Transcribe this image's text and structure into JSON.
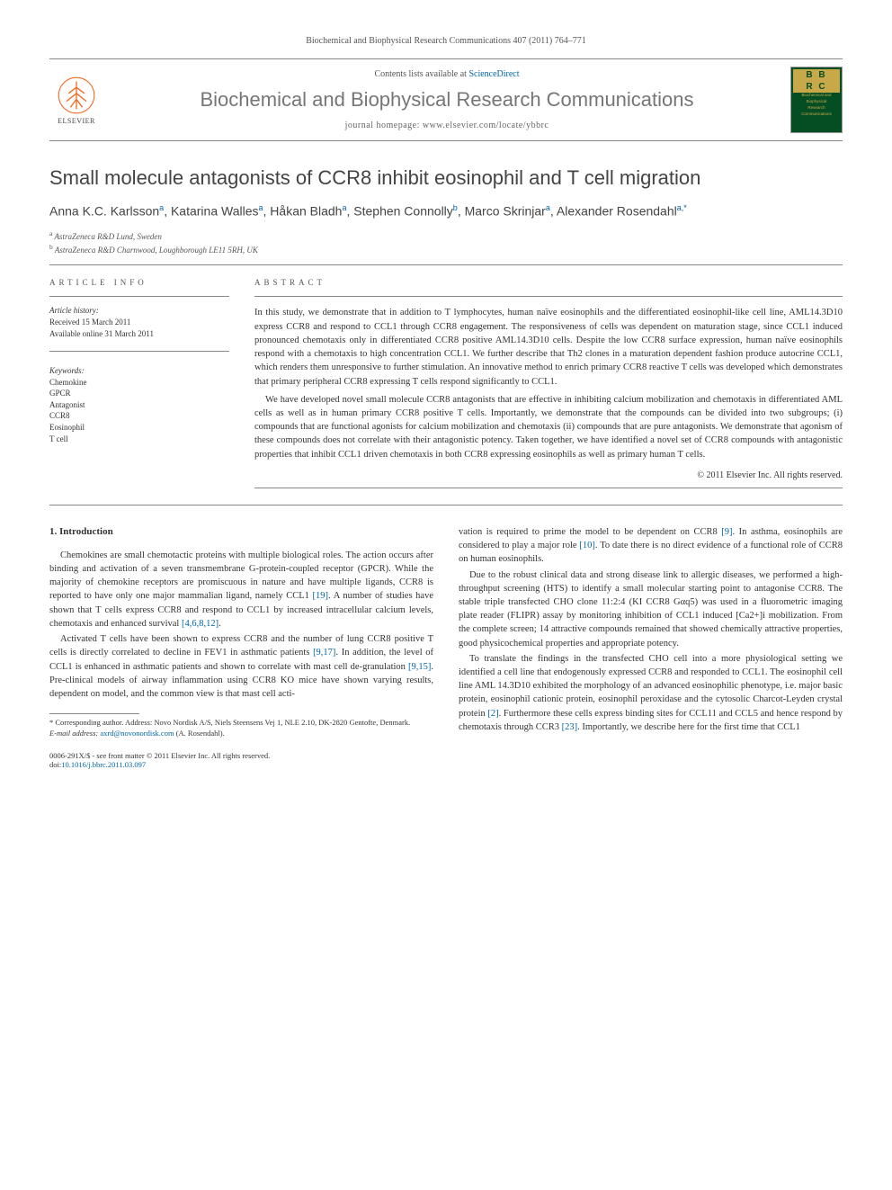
{
  "header": {
    "journal_ref": "Biochemical and Biophysical Research Communications 407 (2011) 764–771",
    "contents_prefix": "Contents lists available at ",
    "contents_link": "ScienceDirect",
    "journal_name": "Biochemical and Biophysical Research Communications",
    "homepage_prefix": "journal homepage: ",
    "homepage_url": "www.elsevier.com/locate/ybbrc",
    "publisher": "ELSEVIER",
    "cover": {
      "abbrev_top": "B B",
      "abbrev_bottom": "R C",
      "subtitle1": "Biochemical and",
      "subtitle2": "Biophysical",
      "subtitle3": "Research",
      "subtitle4": "Communications"
    }
  },
  "article": {
    "title": "Small molecule antagonists of CCR8 inhibit eosinophil and T cell migration",
    "authors_html": "Anna K.C. Karlsson<sup>a</sup>, Katarina Walles<sup>a</sup>, Håkan Bladh<sup>a</sup>, Stephen Connolly<sup>b</sup>, Marco Skrinjar<sup>a</sup>, Alexander Rosendahl<sup>a,*</sup>",
    "affiliations": [
      {
        "label": "a",
        "text": "AstraZeneca R&D Lund, Sweden"
      },
      {
        "label": "b",
        "text": "AstraZeneca R&D Charnwood, Loughborough LE11 5RH, UK"
      }
    ]
  },
  "meta": {
    "article_info_heading": "ARTICLE INFO",
    "abstract_heading": "ABSTRACT",
    "history_heading": "Article history:",
    "received": "Received 15 March 2011",
    "available": "Available online 31 March 2011",
    "keywords_heading": "Keywords:",
    "keywords": [
      "Chemokine",
      "GPCR",
      "Antagonist",
      "CCR8",
      "Eosinophil",
      "T cell"
    ]
  },
  "abstract": {
    "p1": "In this study, we demonstrate that in addition to T lymphocytes, human naïve eosinophils and the differentiated eosinophil-like cell line, AML14.3D10 express CCR8 and respond to CCL1 through CCR8 engagement. The responsiveness of cells was dependent on maturation stage, since CCL1 induced pronounced chemotaxis only in differentiated CCR8 positive AML14.3D10 cells. Despite the low CCR8 surface expression, human naïve eosinophils respond with a chemotaxis to high concentration CCL1. We further describe that Th2 clones in a maturation dependent fashion produce autocrine CCL1, which renders them unresponsive to further stimulation. An innovative method to enrich primary CCR8 reactive T cells was developed which demonstrates that primary peripheral CCR8 expressing T cells respond significantly to CCL1.",
    "p2": "We have developed novel small molecule CCR8 antagonists that are effective in inhibiting calcium mobilization and chemotaxis in differentiated AML cells as well as in human primary CCR8 positive T cells. Importantly, we demonstrate that the compounds can be divided into two subgroups; (i) compounds that are functional agonists for calcium mobilization and chemotaxis (ii) compounds that are pure antagonists. We demonstrate that agonism of these compounds does not correlate with their antagonistic potency. Taken together, we have identified a novel set of CCR8 compounds with antagonistic properties that inhibit CCL1 driven chemotaxis in both CCR8 expressing eosinophils as well as primary human T cells.",
    "copyright": "© 2011 Elsevier Inc. All rights reserved."
  },
  "body": {
    "intro_heading": "1. Introduction",
    "left_p1": "Chemokines are small chemotactic proteins with multiple biological roles. The action occurs after binding and activation of a seven transmembrane G-protein-coupled receptor (GPCR). While the majority of chemokine receptors are promiscuous in nature and have multiple ligands, CCR8 is reported to have only one major mammalian ligand, namely CCL1 ",
    "left_p1_ref1": "[19]",
    "left_p1_cont": ". A number of studies have shown that T cells express CCR8 and respond to CCL1 by increased intracellular calcium levels, chemotaxis and enhanced survival ",
    "left_p1_ref2": "[4,6,8,12]",
    "left_p1_end": ".",
    "left_p2": "Activated T cells have been shown to express CCR8 and the number of lung CCR8 positive T cells is directly correlated to decline in FEV1 in asthmatic patients ",
    "left_p2_ref1": "[9,17]",
    "left_p2_mid": ". In addition, the level of CCL1 is enhanced in asthmatic patients and shown to correlate with mast cell de-granulation ",
    "left_p2_ref2": "[9,15]",
    "left_p2_end": ". Pre-clinical models of airway inflammation using CCR8 KO mice have shown varying results, dependent on model, and the common view is that mast cell acti-",
    "right_p1_start": "vation is required to prime the model to be dependent on CCR8 ",
    "right_p1_ref1": "[9]",
    "right_p1_mid": ". In asthma, eosinophils are considered to play a major role ",
    "right_p1_ref2": "[10]",
    "right_p1_end": ". To date there is no direct evidence of a functional role of CCR8 on human eosinophils.",
    "right_p2": "Due to the robust clinical data and strong disease link to allergic diseases, we performed a high-throughput screening (HTS) to identify a small molecular starting point to antagonise CCR8. The stable triple transfected CHO clone 11:2:4 (KI CCR8 Gαq5) was used in a fluorometric imaging plate reader (FLIPR) assay by monitoring inhibition of CCL1 induced [Ca2+]i mobilization. From the complete screen; 14 attractive compounds remained that showed chemically attractive properties, good physicochemical properties and appropriate potency.",
    "right_p3": "To translate the findings in the transfected CHO cell into a more physiological setting we identified a cell line that endogenously expressed CCR8 and responded to CCL1. The eosinophil cell line AML 14.3D10 exhibited the morphology of an advanced eosinophilic phenotype, i.e. major basic protein, eosinophil cationic protein, eosinophil peroxidase and the cytosolic Charcot-Leyden crystal protein ",
    "right_p3_ref1": "[2]",
    "right_p3_mid": ". Furthermore these cells express binding sites for CCL11 and CCL5 and hence respond by chemotaxis through CCR3 ",
    "right_p3_ref2": "[23]",
    "right_p3_end": ". Importantly, we describe here for the first time that CCL1"
  },
  "footnote": {
    "corresponding": "* Corresponding author. Address: Novo Nordisk A/S, Niels Steensens Vej 1, NLE 2.10, DK-2820 Gentofte, Denmark.",
    "email_label": "E-mail address: ",
    "email": "axrd@novonordisk.com",
    "email_attribution": " (A. Rosendahl)."
  },
  "footer": {
    "issn_line": "0006-291X/$ - see front matter © 2011 Elsevier Inc. All rights reserved.",
    "doi_prefix": "doi:",
    "doi": "10.1016/j.bbrc.2011.03.097"
  },
  "colors": {
    "link": "#0066aa",
    "text": "#333333",
    "heading_gray": "#767676",
    "elsevier_orange": "#f36b21",
    "cover_green": "#054d23",
    "cover_gold": "#c8a94a"
  },
  "typography": {
    "body_pt": 10.5,
    "title_pt": 22,
    "journal_pt": 22,
    "authors_pt": 14,
    "meta_pt": 9,
    "footnote_pt": 8.5
  }
}
